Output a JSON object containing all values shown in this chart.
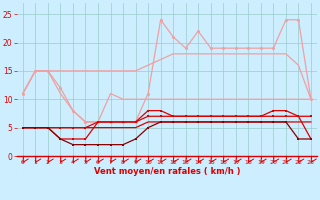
{
  "x": [
    0,
    1,
    2,
    3,
    4,
    5,
    6,
    7,
    8,
    9,
    10,
    11,
    12,
    13,
    14,
    15,
    16,
    17,
    18,
    19,
    20,
    21,
    22,
    23
  ],
  "line_gust_upper": [
    11,
    15,
    15,
    15,
    15,
    15,
    15,
    15,
    15,
    15,
    16,
    17,
    18,
    18,
    18,
    18,
    18,
    18,
    18,
    18,
    18,
    18,
    16,
    10
  ],
  "line_gust_peak": [
    11,
    15,
    15,
    12,
    8,
    6,
    6,
    6,
    6,
    6,
    11,
    24,
    21,
    19,
    22,
    19,
    19,
    19,
    19,
    19,
    19,
    24,
    24,
    10
  ],
  "line_gust_lower": [
    11,
    15,
    15,
    11,
    8,
    6,
    6,
    11,
    10,
    10,
    10,
    10,
    10,
    10,
    10,
    10,
    10,
    10,
    10,
    10,
    10,
    10,
    10,
    10
  ],
  "line_wind_upper": [
    5,
    5,
    5,
    3,
    3,
    3,
    6,
    6,
    6,
    6,
    8,
    8,
    7,
    7,
    7,
    7,
    7,
    7,
    7,
    7,
    8,
    8,
    7,
    3
  ],
  "line_wind_mid": [
    5,
    5,
    5,
    5,
    5,
    5,
    6,
    6,
    6,
    6,
    7,
    7,
    7,
    7,
    7,
    7,
    7,
    7,
    7,
    7,
    7,
    7,
    7,
    7
  ],
  "line_wind_lower": [
    5,
    5,
    5,
    5,
    5,
    5,
    5,
    5,
    5,
    5,
    6,
    6,
    6,
    6,
    6,
    6,
    6,
    6,
    6,
    6,
    6,
    6,
    6,
    6
  ],
  "line_dark": [
    5,
    5,
    5,
    3,
    2,
    2,
    2,
    2,
    2,
    3,
    5,
    6,
    6,
    6,
    6,
    6,
    6,
    6,
    6,
    6,
    6,
    6,
    3,
    3
  ],
  "color_light": "#f0a0a0",
  "color_red": "#dd0000",
  "color_darkred": "#880000",
  "bg_color": "#cceeff",
  "grid_color": "#99cccc",
  "xlabel": "Vent moyen/en rafales ( km/h )",
  "ylim": [
    0,
    27
  ],
  "xlim": [
    -0.5,
    23.5
  ],
  "yticks": [
    0,
    5,
    10,
    15,
    20,
    25
  ]
}
